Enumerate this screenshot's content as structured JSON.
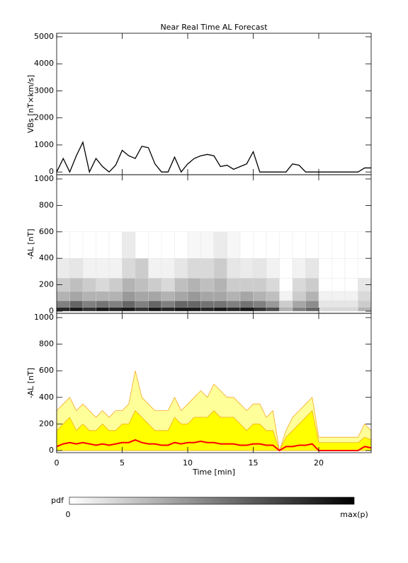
{
  "chart_data": [
    {
      "type": "line",
      "title": "Near Real Time AL Forecast",
      "ylabel": "VBs [nT×km/s]",
      "x": [
        0,
        0.5,
        1,
        1.5,
        2,
        2.5,
        3,
        3.5,
        4,
        4.5,
        5,
        5.5,
        6,
        6.5,
        7,
        7.5,
        8,
        8.5,
        9,
        9.5,
        10,
        10.5,
        11,
        11.5,
        12,
        12.5,
        13,
        13.5,
        14,
        14.5,
        15,
        15.5,
        16,
        16.5,
        17,
        17.5,
        18,
        18.5,
        19,
        19.5,
        20,
        20.5,
        21,
        21.5,
        22,
        22.5,
        23,
        23.5,
        24
      ],
      "values": [
        0,
        500,
        0,
        600,
        1100,
        0,
        500,
        200,
        0,
        250,
        800,
        600,
        500,
        950,
        900,
        300,
        0,
        0,
        550,
        0,
        300,
        500,
        600,
        650,
        600,
        200,
        250,
        100,
        200,
        300,
        750,
        0,
        0,
        0,
        0,
        0,
        300,
        250,
        0,
        0,
        0,
        0,
        0,
        0,
        0,
        0,
        0,
        150,
        150
      ],
      "color": "#000000",
      "xlim": [
        0,
        24
      ],
      "ylim": [
        -100,
        5130
      ],
      "xticks": [
        0,
        5,
        10,
        15,
        20
      ],
      "yticks": [
        0,
        1000,
        2000,
        3000,
        4000,
        5000
      ]
    },
    {
      "type": "heatmap",
      "ylabel": "-AL [nT]",
      "x_edges": [
        0,
        1,
        2,
        3,
        4,
        5,
        6,
        7,
        8,
        9,
        10,
        11,
        12,
        13,
        14,
        15,
        16,
        17,
        18,
        19,
        20,
        21,
        22,
        23,
        24
      ],
      "y_edges": [
        0,
        30,
        80,
        150,
        250,
        400,
        600
      ],
      "z": [
        [
          0.85,
          0.9,
          0.8,
          0.9,
          0.85,
          0.9,
          0.8,
          0.9,
          0.85,
          0.9,
          0.9,
          0.85,
          0.9,
          0.85,
          0.9,
          0.8,
          0.7,
          0.3,
          0.5,
          0.6,
          0.15,
          0.15,
          0.15,
          0.3
        ],
        [
          0.5,
          0.6,
          0.5,
          0.55,
          0.5,
          0.6,
          0.5,
          0.6,
          0.5,
          0.6,
          0.6,
          0.55,
          0.55,
          0.5,
          0.55,
          0.5,
          0.4,
          0.2,
          0.35,
          0.45,
          0.1,
          0.1,
          0.1,
          0.2
        ],
        [
          0.3,
          0.35,
          0.3,
          0.3,
          0.3,
          0.4,
          0.35,
          0.35,
          0.3,
          0.35,
          0.4,
          0.35,
          0.35,
          0.3,
          0.35,
          0.3,
          0.25,
          0.05,
          0.2,
          0.3,
          0.05,
          0.05,
          0.05,
          0.15
        ],
        [
          0.2,
          0.25,
          0.2,
          0.15,
          0.2,
          0.3,
          0.25,
          0.2,
          0.15,
          0.25,
          0.3,
          0.25,
          0.3,
          0.2,
          0.2,
          0.2,
          0.15,
          0,
          0.15,
          0.2,
          0,
          0,
          0,
          0.1
        ],
        [
          0.08,
          0.1,
          0.05,
          0.05,
          0.05,
          0.15,
          0.2,
          0.05,
          0.05,
          0.1,
          0.15,
          0.15,
          0.2,
          0.1,
          0.08,
          0.1,
          0.05,
          0,
          0.05,
          0.1,
          0,
          0,
          0,
          0
        ],
        [
          0,
          0,
          0,
          0,
          0,
          0.08,
          0,
          0,
          0,
          0,
          0.03,
          0.03,
          0.08,
          0.03,
          0,
          0,
          0,
          0,
          0,
          0,
          0,
          0,
          0,
          0
        ]
      ],
      "xlim": [
        0,
        24
      ],
      "ylim": [
        -16,
        1032
      ],
      "xticks": [
        0,
        5,
        10,
        15,
        20
      ],
      "yticks": [
        0,
        200,
        400,
        600,
        800,
        1000
      ]
    },
    {
      "type": "area",
      "ylabel": "-AL [nT]",
      "xlabel": "Time [min]",
      "x": [
        0,
        0.5,
        1,
        1.5,
        2,
        2.5,
        3,
        3.5,
        4,
        4.5,
        5,
        5.5,
        6,
        6.5,
        7,
        7.5,
        8,
        8.5,
        9,
        9.5,
        10,
        10.5,
        11,
        11.5,
        12,
        12.5,
        13,
        13.5,
        14,
        14.5,
        15,
        15.5,
        16,
        16.5,
        17,
        17.5,
        18,
        18.5,
        19,
        19.5,
        20,
        20.5,
        21,
        21.5,
        22,
        22.5,
        23,
        23.5,
        24
      ],
      "series": [
        {
          "style": "area",
          "color": "#ffff99",
          "edge_color": "#f5a623",
          "values": [
            300,
            350,
            400,
            300,
            350,
            300,
            250,
            300,
            250,
            300,
            300,
            350,
            600,
            400,
            350,
            300,
            300,
            300,
            400,
            300,
            350,
            400,
            450,
            400,
            500,
            450,
            400,
            400,
            350,
            300,
            350,
            350,
            250,
            300,
            0,
            150,
            250,
            300,
            350,
            400,
            100,
            100,
            100,
            100,
            100,
            100,
            100,
            200,
            150
          ]
        },
        {
          "style": "area",
          "color": "#ffff00",
          "edge_color": "#f5a623",
          "values": [
            150,
            200,
            250,
            150,
            200,
            150,
            150,
            200,
            150,
            150,
            200,
            200,
            300,
            250,
            200,
            150,
            150,
            150,
            250,
            200,
            200,
            250,
            250,
            250,
            300,
            250,
            250,
            250,
            200,
            150,
            200,
            200,
            150,
            150,
            0,
            100,
            150,
            200,
            250,
            300,
            60,
            60,
            60,
            60,
            60,
            60,
            60,
            100,
            80
          ]
        },
        {
          "style": "line",
          "color": "#ff0000",
          "values": [
            30,
            50,
            60,
            50,
            60,
            50,
            40,
            50,
            40,
            50,
            60,
            60,
            80,
            60,
            50,
            50,
            40,
            40,
            60,
            50,
            60,
            60,
            70,
            60,
            60,
            50,
            50,
            50,
            40,
            40,
            50,
            50,
            40,
            40,
            0,
            30,
            30,
            40,
            40,
            50,
            0,
            0,
            0,
            0,
            0,
            0,
            0,
            30,
            20
          ]
        }
      ],
      "xlim": [
        0,
        24
      ],
      "ylim": [
        -16,
        1032
      ],
      "xticks": [
        0,
        5,
        10,
        15,
        20
      ],
      "yticks": [
        0,
        200,
        400,
        600,
        800,
        1000
      ]
    }
  ],
  "colorbar": {
    "label": "pdf",
    "min_label": "0",
    "max_label": "max(p)"
  }
}
